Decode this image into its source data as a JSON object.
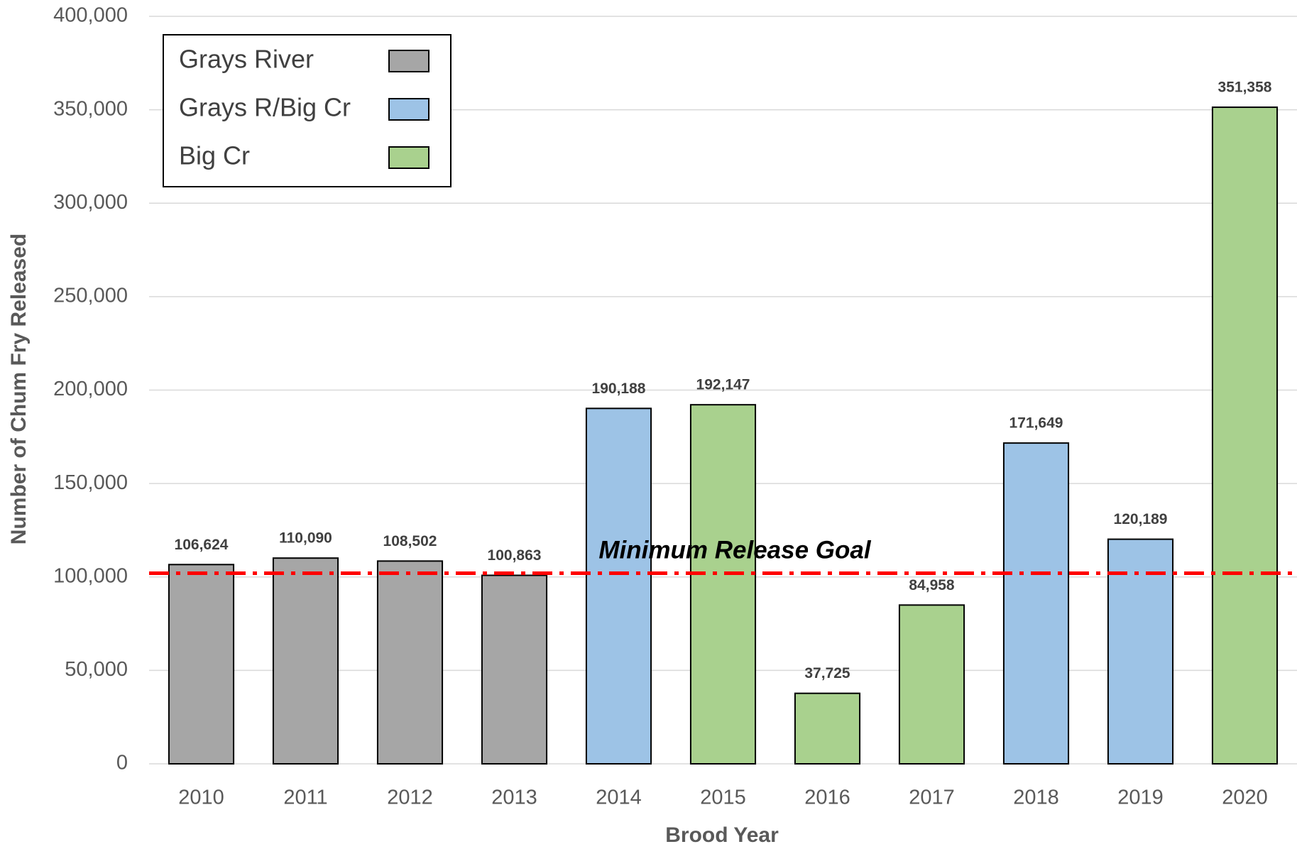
{
  "chart_data": {
    "type": "bar",
    "xlabel": "Brood Year",
    "ylabel": "Number of Chum Fry Released",
    "categories": [
      "2010",
      "2011",
      "2012",
      "2013",
      "2014",
      "2015",
      "2016",
      "2017",
      "2018",
      "2019",
      "2020"
    ],
    "series": [
      {
        "name": "Grays River",
        "color": "#a6a6a6",
        "values": [
          106624,
          110090,
          108502,
          100863,
          null,
          null,
          null,
          null,
          null,
          null,
          null
        ],
        "value_labels": [
          "106,624",
          "110,090",
          "108,502",
          "100,863",
          null,
          null,
          null,
          null,
          null,
          null,
          null
        ]
      },
      {
        "name": "Grays R/Big Cr",
        "color": "#9dc3e6",
        "values": [
          null,
          null,
          null,
          null,
          190188,
          null,
          null,
          null,
          171649,
          120189,
          null
        ],
        "value_labels": [
          null,
          null,
          null,
          null,
          "190,188",
          null,
          null,
          null,
          "171,649",
          "120,189",
          null
        ]
      },
      {
        "name": "Big Cr",
        "color": "#a9d18e",
        "values": [
          null,
          null,
          null,
          null,
          null,
          192147,
          37725,
          84958,
          null,
          null,
          351358
        ],
        "value_labels": [
          null,
          null,
          null,
          null,
          null,
          "192,147",
          "37,725",
          "84,958",
          null,
          null,
          "351,358"
        ]
      }
    ],
    "ylim": [
      0,
      400000
    ],
    "yticks": [
      0,
      {
        "value": 50000,
        "label": "50,000"
      },
      {
        "value": 100000,
        "label": "100,000"
      },
      {
        "value": 150000,
        "label": "150,000"
      },
      {
        "value": 200000,
        "label": "200,000"
      },
      {
        "value": 250000,
        "label": "250,000"
      },
      {
        "value": 300000,
        "label": "300,000"
      },
      {
        "value": 350000,
        "label": "350,000"
      },
      {
        "value": 400000,
        "label": "400,000"
      }
    ],
    "grid": true,
    "legend": "upper left",
    "reference_line": {
      "value": 102000,
      "label": "Minimum Release Goal",
      "color": "#ff0000"
    }
  }
}
